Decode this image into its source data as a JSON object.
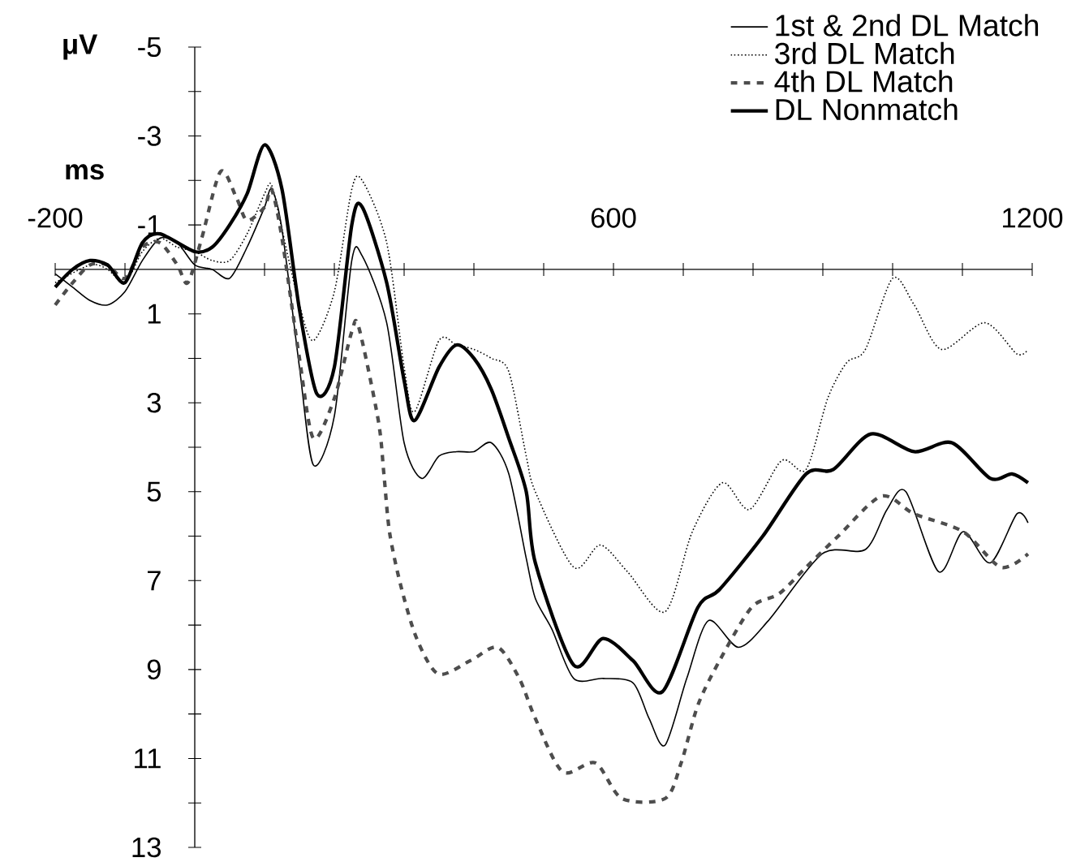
{
  "chart_data": {
    "type": "line",
    "xlabel": "ms",
    "ylabel": "μV",
    "xlim": [
      -200,
      1200
    ],
    "ylim": [
      13,
      -5
    ],
    "xticks": [
      -200,
      {
        "value": -100,
        "label": null
      },
      {
        "value": 0,
        "label": null
      },
      {
        "value": 100,
        "label": null
      },
      {
        "value": 200,
        "label": null
      },
      {
        "value": 300,
        "label": null
      },
      {
        "value": 400,
        "label": null
      },
      {
        "value": 500,
        "label": null
      },
      600,
      {
        "value": 700,
        "label": null
      },
      {
        "value": 800,
        "label": null
      },
      {
        "value": 900,
        "label": null
      },
      {
        "value": 1000,
        "label": null
      },
      {
        "value": 1100,
        "label": null
      },
      1200
    ],
    "yticks": [
      -5,
      {
        "value": -4,
        "label": null
      },
      -3,
      {
        "value": -2,
        "label": null
      },
      -1,
      {
        "value": 0,
        "label": null
      },
      1,
      {
        "value": 2,
        "label": null
      },
      3,
      {
        "value": 4,
        "label": null
      },
      5,
      {
        "value": 6,
        "label": null
      },
      7,
      {
        "value": 8,
        "label": null
      },
      9,
      {
        "value": 10,
        "label": null
      },
      11,
      {
        "value": 12,
        "label": null
      },
      13
    ],
    "legend": "top right",
    "series": [
      {
        "name": "1st & 2nd DL Match",
        "color": "#000000",
        "line_style": "solid",
        "x": [
          -200,
          -175,
          -150,
          -125,
          -100,
          -75,
          -50,
          -25,
          0,
          25,
          50,
          75,
          100,
          110,
          125,
          150,
          170,
          200,
          225,
          240,
          275,
          300,
          325,
          350,
          375,
          400,
          425,
          450,
          475,
          488,
          512,
          543,
          585,
          628,
          651,
          674,
          705,
          736,
          779,
          822,
          899,
          961,
          992,
          1019,
          1066,
          1101,
          1140,
          1178,
          1194
        ],
        "values": [
          0.1,
          0.4,
          0.7,
          0.8,
          0.5,
          -0.2,
          -0.7,
          -0.6,
          -0.1,
          0.0,
          0.2,
          -0.5,
          -1.4,
          -1.8,
          -0.9,
          2.2,
          4.4,
          3.3,
          -0.2,
          -0.3,
          1.2,
          3.9,
          4.7,
          4.2,
          4.1,
          4.1,
          3.9,
          4.6,
          6.5,
          7.4,
          8.1,
          9.2,
          9.2,
          9.3,
          10.1,
          10.7,
          9.2,
          7.9,
          8.5,
          7.9,
          6.4,
          6.3,
          5.4,
          5.0,
          6.8,
          5.9,
          6.6,
          5.5,
          5.7
        ]
      },
      {
        "name": "3rd DL Match",
        "color": "#000000",
        "line_style": "dotted",
        "x": [
          -200,
          -150,
          -125,
          -100,
          -75,
          -50,
          -25,
          0,
          25,
          50,
          75,
          100,
          110,
          125,
          150,
          170,
          200,
          225,
          240,
          275,
          300,
          315,
          350,
          375,
          400,
          425,
          450,
          475,
          488,
          543,
          581,
          620,
          674,
          713,
          756,
          795,
          841,
          876,
          907,
          934,
          961,
          1000,
          1031,
          1070,
          1132,
          1178,
          1194
        ],
        "values": [
          0.3,
          -0.1,
          0.0,
          0.3,
          -0.4,
          -0.7,
          -0.5,
          -0.4,
          -0.2,
          -0.2,
          -0.8,
          -1.7,
          -1.9,
          -0.9,
          0.8,
          1.6,
          0.5,
          -1.8,
          -2.0,
          -0.6,
          2.2,
          3.2,
          1.6,
          1.7,
          1.8,
          2.0,
          2.3,
          4.2,
          5.0,
          6.7,
          6.2,
          6.8,
          7.7,
          5.9,
          4.8,
          5.4,
          4.3,
          4.5,
          2.9,
          2.1,
          1.8,
          0.2,
          0.8,
          1.8,
          1.2,
          1.9,
          1.8
        ]
      },
      {
        "name": "4th DL Match",
        "color": "#4d4d4d",
        "line_style": "dashed",
        "x": [
          -200,
          -175,
          -150,
          -125,
          -100,
          -75,
          -50,
          -25,
          -10,
          10,
          37,
          60,
          75,
          100,
          110,
          125,
          150,
          170,
          200,
          225,
          235,
          263,
          271,
          279,
          295,
          318,
          349,
          395,
          434,
          465,
          488,
          527,
          574,
          612,
          674,
          697,
          721,
          752,
          798,
          837,
          876,
          922,
          984,
          1031,
          1101,
          1155,
          1194
        ],
        "values": [
          0.8,
          0.3,
          -0.1,
          -0.1,
          0.2,
          -0.5,
          -0.6,
          -0.1,
          0.3,
          -0.7,
          -2.2,
          -1.6,
          -1.1,
          -1.4,
          -1.8,
          -0.7,
          2.0,
          3.8,
          2.9,
          1.4,
          1.3,
          3.4,
          4.6,
          5.9,
          7.1,
          8.3,
          9.1,
          8.8,
          8.5,
          9.2,
          10.1,
          11.3,
          11.1,
          11.9,
          11.9,
          11.1,
          9.8,
          8.8,
          7.6,
          7.3,
          6.7,
          6.0,
          5.1,
          5.5,
          5.9,
          6.7,
          6.4
        ]
      },
      {
        "name": "DL Nonmatch",
        "color": "#000000",
        "line_style": "solid",
        "x": [
          -200,
          -175,
          -150,
          -125,
          -100,
          -75,
          -50,
          0,
          25,
          50,
          75,
          100,
          125,
          150,
          175,
          200,
          225,
          240,
          275,
          300,
          315,
          350,
          375,
          400,
          425,
          450,
          475,
          488,
          543,
          585,
          628,
          670,
          721,
          752,
          814,
          876,
          915,
          969,
          1031,
          1085,
          1140,
          1171,
          1194
        ],
        "values": [
          0.4,
          0.0,
          -0.2,
          -0.1,
          0.3,
          -0.6,
          -0.8,
          -0.4,
          -0.5,
          -1.0,
          -1.7,
          -2.8,
          -1.8,
          0.9,
          2.8,
          2.2,
          -1.0,
          -1.4,
          0.3,
          2.5,
          3.4,
          2.2,
          1.7,
          2.0,
          2.7,
          3.8,
          5.0,
          6.6,
          8.9,
          8.3,
          8.8,
          9.5,
          7.6,
          7.2,
          6.0,
          4.6,
          4.5,
          3.7,
          4.1,
          3.9,
          4.7,
          4.6,
          4.8
        ]
      }
    ]
  }
}
